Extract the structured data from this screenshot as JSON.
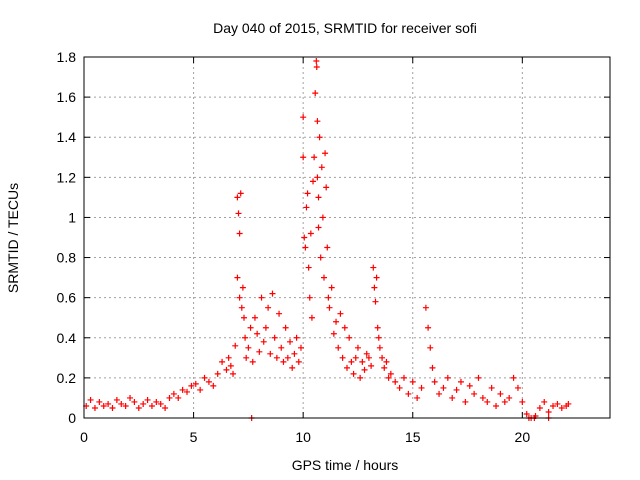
{
  "chart_data": {
    "type": "scatter",
    "title": "Day 040 of 2015, SRMTID for receiver sofi",
    "xlabel": "GPS time / hours",
    "ylabel": "SRMTID / TECUs",
    "xlim": [
      0,
      24
    ],
    "ylim": [
      0,
      1.8
    ],
    "xticks": [
      0,
      5,
      10,
      15,
      20
    ],
    "xtick_labels": [
      "0",
      "5",
      "10",
      "15",
      "20"
    ],
    "yticks": [
      0,
      0.2,
      0.4,
      0.6,
      0.8,
      1.0,
      1.2,
      1.4,
      1.6,
      1.8
    ],
    "ytick_labels": [
      "0",
      "0.2",
      "0.4",
      "0.6",
      "0.8",
      "1",
      "1.2",
      "1.4",
      "1.6",
      "1.8"
    ],
    "grid": true,
    "marker": "+",
    "series": [
      {
        "name": "SRMTID",
        "color": "#ff0000",
        "x": [
          0.1,
          0.3,
          0.5,
          0.7,
          0.9,
          1.1,
          1.3,
          1.5,
          1.7,
          1.9,
          2.1,
          2.3,
          2.5,
          2.7,
          2.9,
          3.1,
          3.3,
          3.5,
          3.7,
          3.9,
          4.1,
          4.3,
          4.5,
          4.7,
          4.9,
          5.1,
          5.3,
          5.5,
          5.7,
          5.9,
          6.1,
          6.3,
          6.5,
          6.6,
          6.7,
          6.8,
          6.9,
          7.0,
          7.0,
          7.05,
          7.1,
          7.1,
          7.15,
          7.2,
          7.25,
          7.3,
          7.35,
          7.4,
          7.5,
          7.6,
          7.7,
          7.8,
          7.9,
          8.0,
          8.1,
          8.2,
          8.3,
          8.4,
          8.5,
          8.6,
          8.7,
          8.8,
          8.9,
          9.0,
          9.1,
          9.2,
          9.3,
          9.4,
          9.5,
          9.6,
          9.7,
          9.8,
          9.9,
          10.0,
          10.0,
          10.05,
          10.1,
          10.15,
          10.2,
          10.25,
          10.3,
          10.35,
          10.4,
          10.45,
          10.5,
          10.55,
          10.6,
          10.62,
          10.65,
          10.65,
          10.7,
          10.7,
          10.75,
          10.8,
          10.85,
          10.9,
          10.95,
          11.0,
          11.05,
          11.1,
          11.15,
          11.2,
          11.3,
          11.4,
          11.5,
          11.6,
          11.7,
          11.8,
          11.9,
          12.0,
          12.1,
          12.2,
          12.3,
          12.4,
          12.5,
          12.6,
          12.7,
          12.8,
          12.9,
          13.0,
          13.1,
          13.2,
          13.25,
          13.3,
          13.35,
          13.4,
          13.45,
          13.5,
          13.6,
          13.7,
          13.8,
          13.9,
          14.0,
          14.2,
          14.4,
          14.6,
          14.8,
          15.0,
          15.2,
          15.4,
          15.6,
          15.7,
          15.8,
          15.9,
          16.0,
          16.2,
          16.4,
          16.6,
          16.8,
          17.0,
          17.2,
          17.4,
          17.6,
          17.8,
          18.0,
          18.2,
          18.4,
          18.6,
          18.8,
          19.0,
          19.2,
          19.4,
          19.6,
          19.8,
          20.0,
          20.2,
          20.4,
          20.6,
          20.8,
          21.0,
          21.2,
          21.4,
          21.6,
          21.8,
          22.0,
          22.1,
          7.65,
          20.3,
          20.55,
          21.2
        ],
        "y": [
          0.06,
          0.09,
          0.05,
          0.08,
          0.06,
          0.07,
          0.05,
          0.09,
          0.07,
          0.06,
          0.1,
          0.08,
          0.05,
          0.07,
          0.09,
          0.06,
          0.08,
          0.07,
          0.05,
          0.1,
          0.12,
          0.1,
          0.14,
          0.13,
          0.16,
          0.17,
          0.14,
          0.2,
          0.18,
          0.16,
          0.22,
          0.28,
          0.24,
          0.3,
          0.26,
          0.22,
          0.36,
          1.1,
          0.7,
          1.02,
          0.92,
          0.6,
          1.12,
          0.55,
          0.65,
          0.5,
          0.4,
          0.3,
          0.35,
          0.45,
          0.28,
          0.5,
          0.42,
          0.33,
          0.6,
          0.38,
          0.45,
          0.55,
          0.32,
          0.62,
          0.4,
          0.3,
          0.52,
          0.35,
          0.28,
          0.45,
          0.3,
          0.38,
          0.25,
          0.32,
          0.4,
          0.28,
          0.35,
          1.5,
          1.3,
          0.9,
          0.85,
          1.05,
          1.12,
          0.75,
          0.6,
          0.92,
          0.5,
          1.18,
          1.3,
          1.62,
          1.78,
          1.75,
          1.2,
          1.48,
          1.1,
          0.95,
          1.4,
          0.8,
          1.25,
          1.0,
          0.7,
          1.32,
          1.15,
          0.85,
          0.6,
          0.55,
          0.65,
          0.42,
          0.48,
          0.35,
          0.52,
          0.3,
          0.45,
          0.25,
          0.4,
          0.28,
          0.22,
          0.3,
          0.35,
          0.2,
          0.28,
          0.24,
          0.32,
          0.3,
          0.26,
          0.75,
          0.65,
          0.58,
          0.7,
          0.45,
          0.4,
          0.35,
          0.3,
          0.25,
          0.28,
          0.2,
          0.22,
          0.18,
          0.15,
          0.2,
          0.12,
          0.18,
          0.1,
          0.15,
          0.55,
          0.45,
          0.35,
          0.25,
          0.18,
          0.12,
          0.15,
          0.2,
          0.1,
          0.14,
          0.18,
          0.08,
          0.16,
          0.12,
          0.2,
          0.1,
          0.08,
          0.15,
          0.06,
          0.12,
          0.08,
          0.1,
          0.2,
          0.15,
          0.08,
          0.02,
          0.0,
          0.01,
          0.05,
          0.08,
          0.03,
          0.06,
          0.07,
          0.05,
          0.06,
          0.07,
          0.0,
          0.0,
          0.0,
          0.0
        ]
      }
    ]
  }
}
